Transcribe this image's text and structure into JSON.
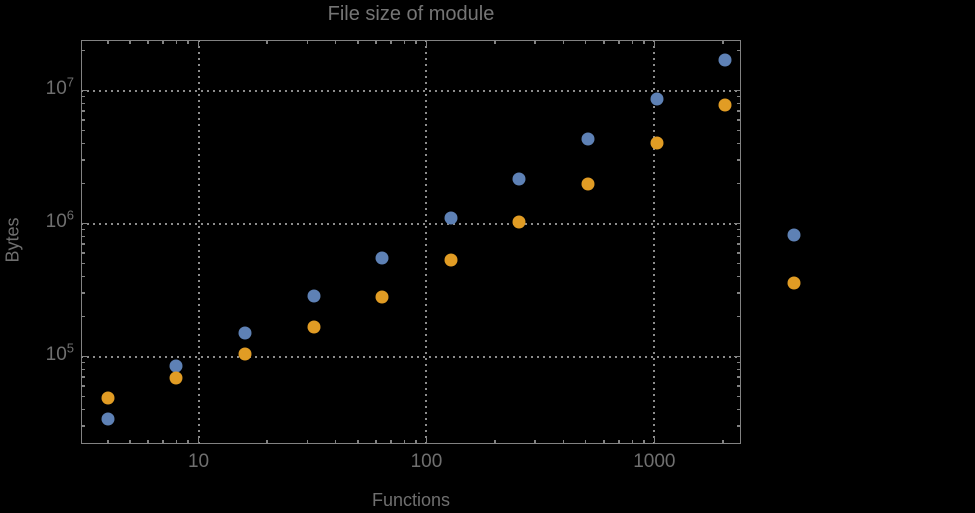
{
  "window": {
    "background": "#000000"
  },
  "colors": {
    "frame": "#828282",
    "grid": "#8c8c8c",
    "text": "#6f6f6f",
    "title_text": "#757575",
    "series_blue": "#5e81b5",
    "series_orange": "#e19c24"
  },
  "chart_data": {
    "type": "scatter",
    "title": "File size of module",
    "xlabel": "Functions",
    "ylabel": "Bytes",
    "x_scale": "log",
    "y_scale": "log",
    "xlim": [
      3.05,
      2400
    ],
    "ylim": [
      22000,
      24000000
    ],
    "grid": "dotted lines at decade ticks, frame on all four sides with inward ticks",
    "legend": "none",
    "x": [
      4,
      8,
      16,
      32,
      64,
      128,
      256,
      512,
      1024,
      2048,
      4096
    ],
    "series": [
      {
        "name": "series-blue",
        "color": "#5e81b5",
        "values": [
          34000,
          85000,
          150000,
          285000,
          548000,
          1100000,
          2160000,
          4320000,
          8600000,
          17000000,
          820000
        ]
      },
      {
        "name": "series-orange",
        "color": "#e19c24",
        "values": [
          49000,
          69000,
          104000,
          168000,
          282000,
          532000,
          1020000,
          2000000,
          4000000,
          7800000,
          360000
        ]
      }
    ],
    "x_ticks": {
      "major_values": [
        10,
        100,
        1000
      ],
      "labels": [
        "10",
        "100",
        "1000"
      ]
    },
    "y_ticks": {
      "major_values": [
        100000,
        1000000,
        10000000
      ],
      "labels": [
        {
          "base": "10",
          "exp": "5"
        },
        {
          "base": "10",
          "exp": "6"
        },
        {
          "base": "10",
          "exp": "7"
        }
      ]
    },
    "note_points_outside_frame": "the two points at x=4096 are drawn to the right of the plot frame"
  }
}
